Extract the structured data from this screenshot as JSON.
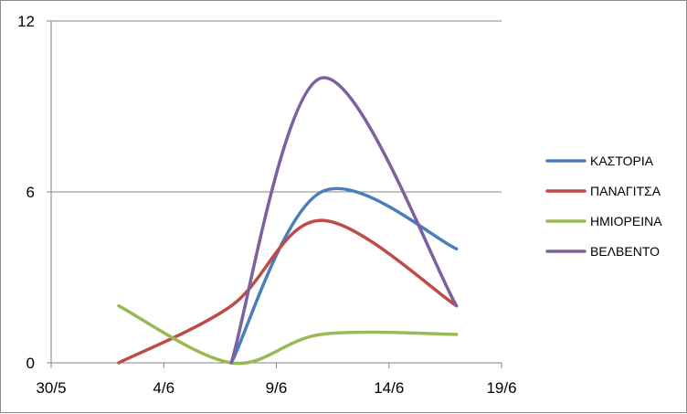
{
  "chart_data": {
    "type": "line",
    "title": "",
    "xlabel": "",
    "ylabel": "",
    "x_ticks": [
      "30/5",
      "4/6",
      "9/6",
      "14/6",
      "19/6"
    ],
    "x_range": [
      "30/5",
      "19/6"
    ],
    "y_ticks": [
      0,
      6,
      12
    ],
    "ylim": [
      0,
      12
    ],
    "grid": "horizontal major gridlines on",
    "smoothed": true,
    "legend_position": "right",
    "x": [
      "2/6",
      "7/6",
      "11/6",
      "17/6"
    ],
    "series": [
      {
        "name": "ΚΑΣΤΟΡΙΑ",
        "color": "#4a7ebb",
        "values": [
          null,
          0,
          6,
          4
        ]
      },
      {
        "name": "ΠΑΝΑΓΙΤΣΑ",
        "color": "#be4b48",
        "values": [
          0,
          2,
          5,
          2
        ]
      },
      {
        "name": "ΗΜΙΟΡΕΙΝΑ",
        "color": "#98b954",
        "values": [
          2,
          0,
          1,
          1
        ]
      },
      {
        "name": "ΒΕΛΒΕΝΤΟ",
        "color": "#7d60a0",
        "values": [
          null,
          0,
          10,
          2
        ]
      }
    ]
  }
}
